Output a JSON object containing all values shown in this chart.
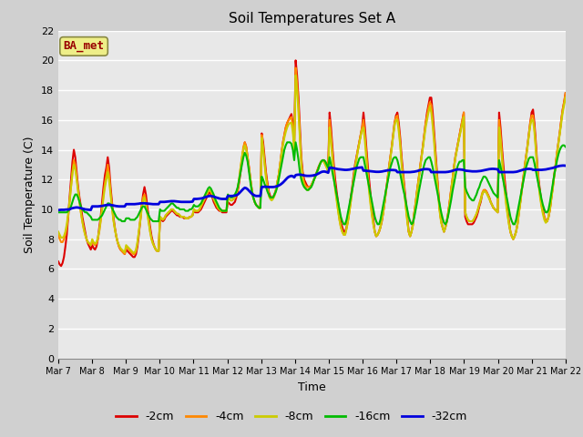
{
  "title": "Soil Temperatures Set A",
  "xlabel": "Time",
  "ylabel": "Soil Temperature (C)",
  "ylim": [
    0,
    22
  ],
  "yticks": [
    0,
    2,
    4,
    6,
    8,
    10,
    12,
    14,
    16,
    18,
    20,
    22
  ],
  "xtick_labels": [
    "Mar 7",
    "Mar 8",
    "Mar 9",
    "Mar 10",
    "Mar 11",
    "Mar 12",
    "Mar 13",
    "Mar 14",
    "Mar 15",
    "Mar 16",
    "Mar 17",
    "Mar 18",
    "Mar 19",
    "Mar 20",
    "Mar 21",
    "Mar 22"
  ],
  "fig_bg_color": "#d0d0d0",
  "plot_bg_color": "#e8e8e8",
  "label_box_color": "#eeee88",
  "label_box_text": "BA_met",
  "legend_labels": [
    "-2cm",
    "-4cm",
    "-8cm",
    "-16cm",
    "-32cm"
  ],
  "line_colors": [
    "#dd0000",
    "#ff8800",
    "#cccc00",
    "#00bb00",
    "#0000dd"
  ],
  "line_widths": [
    1.5,
    1.5,
    1.5,
    1.5,
    2.0
  ],
  "n_days": 15,
  "pts_per_day": 24,
  "series_2cm": [
    6.5,
    6.3,
    6.2,
    6.4,
    6.8,
    7.5,
    8.3,
    9.5,
    10.8,
    12.0,
    13.2,
    14.0,
    13.5,
    12.5,
    11.5,
    10.8,
    10.2,
    9.5,
    9.0,
    8.5,
    8.0,
    7.7,
    7.5,
    7.3,
    7.6,
    7.4,
    7.3,
    7.5,
    8.0,
    8.8,
    9.5,
    10.5,
    11.5,
    12.3,
    12.8,
    13.5,
    12.8,
    11.5,
    10.5,
    9.5,
    8.8,
    8.2,
    7.8,
    7.5,
    7.3,
    7.2,
    7.1,
    7.0,
    7.3,
    7.2,
    7.1,
    7.0,
    6.9,
    6.8,
    6.8,
    7.0,
    7.5,
    8.3,
    9.2,
    10.2,
    11.0,
    11.5,
    11.0,
    10.2,
    9.5,
    8.8,
    8.2,
    7.8,
    7.5,
    7.3,
    7.2,
    7.2,
    9.4,
    9.3,
    9.2,
    9.3,
    9.5,
    9.6,
    9.7,
    9.8,
    9.9,
    9.9,
    9.8,
    9.7,
    9.6,
    9.6,
    9.5,
    9.5,
    9.5,
    9.4,
    9.4,
    9.4,
    9.4,
    9.5,
    9.5,
    9.6,
    9.9,
    9.8,
    9.8,
    9.8,
    9.9,
    10.0,
    10.2,
    10.4,
    10.6,
    10.8,
    11.0,
    11.2,
    11.0,
    10.8,
    10.5,
    10.3,
    10.1,
    10.0,
    9.9,
    9.9,
    9.8,
    9.8,
    9.8,
    9.8,
    10.5,
    10.4,
    10.3,
    10.3,
    10.4,
    10.5,
    10.8,
    11.2,
    11.8,
    12.5,
    13.3,
    14.0,
    14.5,
    14.2,
    13.5,
    12.8,
    12.0,
    11.3,
    10.8,
    10.5,
    10.3,
    10.2,
    10.1,
    10.1,
    15.1,
    14.5,
    13.5,
    12.5,
    11.8,
    11.2,
    10.9,
    10.8,
    10.8,
    11.0,
    11.3,
    11.8,
    12.3,
    13.0,
    13.8,
    14.5,
    15.0,
    15.5,
    15.8,
    16.0,
    16.2,
    16.4,
    15.8,
    14.5,
    20.0,
    19.0,
    17.5,
    15.5,
    13.5,
    12.5,
    12.0,
    11.8,
    11.6,
    11.5,
    11.5,
    11.6,
    11.8,
    12.0,
    12.3,
    12.5,
    12.8,
    13.0,
    13.2,
    13.3,
    13.3,
    13.2,
    13.0,
    12.8,
    16.5,
    15.5,
    14.2,
    13.0,
    12.0,
    11.2,
    10.5,
    9.8,
    9.1,
    8.8,
    8.5,
    8.5,
    8.8,
    9.3,
    10.0,
    10.8,
    11.5,
    12.3,
    13.0,
    13.5,
    14.0,
    14.5,
    15.0,
    15.5,
    16.5,
    15.5,
    14.2,
    13.0,
    12.0,
    11.0,
    10.0,
    9.3,
    8.5,
    8.2,
    8.3,
    8.5,
    8.8,
    9.2,
    9.8,
    10.5,
    11.3,
    12.0,
    12.8,
    13.5,
    14.2,
    15.0,
    15.8,
    16.3,
    16.5,
    15.8,
    14.8,
    13.5,
    12.5,
    11.5,
    10.5,
    9.5,
    8.5,
    8.2,
    8.5,
    9.0,
    9.8,
    10.5,
    11.3,
    12.0,
    12.8,
    13.5,
    14.2,
    15.0,
    15.8,
    16.5,
    17.0,
    17.5,
    17.5,
    16.5,
    15.2,
    13.8,
    12.5,
    11.2,
    10.0,
    9.2,
    8.8,
    8.5,
    8.8,
    9.2,
    9.8,
    10.5,
    11.3,
    12.0,
    12.8,
    13.5,
    14.0,
    14.5,
    15.0,
    15.5,
    16.0,
    16.5,
    9.5,
    9.2,
    9.0,
    9.0,
    9.0,
    9.0,
    9.1,
    9.3,
    9.5,
    9.8,
    10.2,
    10.5,
    11.0,
    11.2,
    11.3,
    11.2,
    11.0,
    10.8,
    10.5,
    10.3,
    10.1,
    10.0,
    9.9,
    9.8,
    16.5,
    15.5,
    14.2,
    13.0,
    12.0,
    11.0,
    10.0,
    9.2,
    8.5,
    8.2,
    8.0,
    8.2,
    8.5,
    9.0,
    9.8,
    10.5,
    11.3,
    12.0,
    12.8,
    13.5,
    14.2,
    15.0,
    15.8,
    16.5,
    16.7,
    15.8,
    14.5,
    13.0,
    12.0,
    11.2,
    10.5,
    10.0,
    9.5,
    9.2,
    9.2,
    9.5,
    10.0,
    10.8,
    11.5,
    12.3,
    13.0,
    13.8,
    14.5,
    15.2,
    16.0,
    16.7,
    17.2,
    17.8
  ],
  "series_4cm": [
    8.3,
    8.0,
    7.8,
    7.8,
    8.0,
    8.3,
    8.8,
    9.5,
    10.5,
    11.5,
    12.5,
    13.3,
    13.0,
    12.2,
    11.3,
    10.5,
    9.8,
    9.2,
    8.7,
    8.3,
    8.0,
    7.8,
    7.7,
    7.6,
    7.8,
    7.7,
    7.6,
    7.7,
    8.0,
    8.5,
    9.2,
    10.0,
    11.0,
    11.8,
    12.3,
    13.0,
    12.3,
    11.2,
    10.2,
    9.3,
    8.7,
    8.2,
    7.8,
    7.5,
    7.3,
    7.2,
    7.1,
    7.0,
    7.5,
    7.4,
    7.3,
    7.2,
    7.1,
    7.0,
    7.0,
    7.2,
    7.7,
    8.5,
    9.3,
    10.2,
    10.8,
    11.0,
    10.5,
    9.8,
    9.2,
    8.5,
    8.0,
    7.7,
    7.5,
    7.3,
    7.2,
    7.2,
    9.5,
    9.4,
    9.3,
    9.4,
    9.6,
    9.7,
    9.8,
    9.9,
    10.0,
    10.0,
    9.9,
    9.8,
    9.7,
    9.7,
    9.6,
    9.5,
    9.5,
    9.5,
    9.4,
    9.4,
    9.4,
    9.5,
    9.5,
    9.6,
    10.0,
    9.9,
    9.9,
    9.9,
    10.0,
    10.2,
    10.4,
    10.6,
    10.8,
    11.0,
    11.2,
    11.3,
    11.2,
    11.0,
    10.7,
    10.5,
    10.3,
    10.1,
    10.0,
    9.9,
    9.9,
    9.9,
    9.9,
    9.9,
    10.8,
    10.7,
    10.6,
    10.6,
    10.7,
    10.8,
    11.0,
    11.4,
    12.0,
    12.8,
    13.5,
    14.2,
    14.5,
    14.2,
    13.5,
    12.8,
    12.0,
    11.3,
    10.8,
    10.5,
    10.3,
    10.2,
    10.1,
    10.1,
    15.0,
    14.2,
    13.2,
    12.3,
    11.6,
    11.0,
    10.8,
    10.7,
    10.8,
    11.0,
    11.3,
    11.8,
    12.3,
    13.0,
    13.8,
    14.5,
    15.0,
    15.5,
    15.8,
    16.0,
    16.1,
    16.2,
    15.5,
    14.2,
    19.5,
    18.5,
    17.0,
    15.0,
    13.2,
    12.2,
    11.8,
    11.6,
    11.5,
    11.5,
    11.5,
    11.6,
    11.8,
    12.0,
    12.3,
    12.5,
    12.8,
    13.0,
    13.2,
    13.3,
    13.2,
    13.0,
    12.8,
    12.5,
    16.0,
    15.0,
    13.8,
    12.5,
    11.5,
    10.8,
    10.0,
    9.3,
    8.8,
    8.5,
    8.3,
    8.3,
    8.7,
    9.2,
    9.8,
    10.5,
    11.3,
    12.0,
    12.8,
    13.4,
    14.0,
    14.5,
    15.0,
    15.5,
    16.0,
    15.0,
    13.8,
    12.5,
    11.5,
    10.5,
    9.7,
    9.0,
    8.5,
    8.2,
    8.3,
    8.5,
    8.8,
    9.3,
    9.8,
    10.5,
    11.3,
    12.0,
    12.8,
    13.5,
    14.2,
    15.0,
    15.8,
    16.2,
    16.3,
    15.5,
    14.5,
    13.2,
    12.2,
    11.2,
    10.2,
    9.3,
    8.5,
    8.2,
    8.5,
    9.0,
    9.8,
    10.5,
    11.3,
    12.0,
    12.8,
    13.5,
    14.2,
    15.0,
    15.8,
    16.3,
    16.8,
    17.2,
    17.0,
    16.0,
    14.8,
    13.5,
    12.2,
    11.0,
    9.9,
    9.2,
    8.8,
    8.5,
    8.8,
    9.2,
    9.8,
    10.5,
    11.3,
    12.0,
    12.8,
    13.5,
    14.0,
    14.5,
    15.0,
    15.5,
    16.0,
    16.5,
    9.8,
    9.5,
    9.3,
    9.2,
    9.2,
    9.2,
    9.3,
    9.5,
    9.7,
    10.0,
    10.4,
    10.7,
    11.1,
    11.3,
    11.3,
    11.2,
    11.0,
    10.8,
    10.5,
    10.3,
    10.1,
    10.0,
    9.9,
    9.8,
    16.0,
    15.0,
    13.8,
    12.5,
    11.5,
    10.5,
    9.7,
    9.0,
    8.5,
    8.2,
    8.0,
    8.2,
    8.5,
    9.0,
    9.8,
    10.5,
    11.3,
    12.0,
    12.8,
    13.5,
    14.2,
    15.0,
    15.8,
    16.3,
    16.3,
    15.5,
    14.2,
    12.8,
    11.8,
    11.0,
    10.3,
    9.8,
    9.5,
    9.2,
    9.2,
    9.5,
    10.0,
    10.8,
    11.5,
    12.3,
    13.0,
    13.8,
    14.5,
    15.2,
    16.0,
    16.7,
    17.2,
    17.8
  ],
  "series_8cm": [
    8.5,
    8.3,
    8.1,
    8.1,
    8.2,
    8.5,
    9.0,
    9.7,
    10.6,
    11.5,
    12.4,
    13.0,
    12.7,
    12.0,
    11.2,
    10.5,
    9.8,
    9.2,
    8.7,
    8.3,
    8.0,
    7.8,
    7.7,
    7.6,
    8.0,
    7.8,
    7.7,
    7.8,
    8.1,
    8.6,
    9.3,
    10.0,
    10.8,
    11.5,
    12.0,
    12.5,
    11.9,
    11.0,
    10.1,
    9.3,
    8.7,
    8.2,
    7.8,
    7.6,
    7.4,
    7.3,
    7.2,
    7.1,
    7.6,
    7.5,
    7.4,
    7.3,
    7.2,
    7.1,
    7.1,
    7.3,
    7.8,
    8.5,
    9.2,
    10.0,
    10.6,
    10.8,
    10.3,
    9.7,
    9.1,
    8.5,
    8.0,
    7.7,
    7.5,
    7.3,
    7.2,
    7.2,
    9.5,
    9.4,
    9.3,
    9.4,
    9.6,
    9.7,
    9.8,
    9.9,
    10.0,
    10.0,
    9.9,
    9.8,
    9.7,
    9.7,
    9.6,
    9.5,
    9.5,
    9.5,
    9.4,
    9.4,
    9.4,
    9.5,
    9.5,
    9.6,
    10.0,
    9.9,
    9.9,
    9.9,
    10.0,
    10.2,
    10.4,
    10.6,
    10.8,
    11.0,
    11.2,
    11.3,
    11.2,
    11.0,
    10.7,
    10.5,
    10.3,
    10.1,
    10.0,
    9.9,
    9.9,
    9.9,
    9.9,
    9.9,
    10.8,
    10.7,
    10.6,
    10.6,
    10.7,
    10.8,
    11.0,
    11.4,
    12.0,
    12.8,
    13.5,
    14.0,
    14.3,
    14.0,
    13.4,
    12.7,
    12.0,
    11.3,
    10.8,
    10.5,
    10.3,
    10.2,
    10.1,
    10.1,
    14.8,
    14.0,
    13.0,
    12.1,
    11.5,
    10.9,
    10.7,
    10.6,
    10.7,
    10.9,
    11.2,
    11.8,
    12.3,
    13.0,
    13.7,
    14.3,
    14.8,
    15.2,
    15.5,
    15.7,
    15.8,
    15.8,
    15.2,
    14.0,
    19.0,
    18.0,
    16.5,
    14.7,
    13.0,
    12.0,
    11.6,
    11.4,
    11.3,
    11.3,
    11.4,
    11.5,
    11.8,
    12.0,
    12.2,
    12.5,
    12.7,
    13.0,
    13.2,
    13.3,
    13.2,
    13.0,
    12.8,
    12.5,
    15.5,
    14.6,
    13.4,
    12.2,
    11.3,
    10.6,
    9.9,
    9.3,
    8.8,
    8.5,
    8.3,
    8.3,
    8.7,
    9.2,
    9.8,
    10.5,
    11.3,
    12.0,
    12.8,
    13.3,
    13.9,
    14.4,
    14.9,
    15.3,
    15.5,
    14.6,
    13.4,
    12.2,
    11.2,
    10.3,
    9.6,
    9.0,
    8.5,
    8.2,
    8.3,
    8.5,
    8.8,
    9.3,
    9.8,
    10.5,
    11.2,
    11.9,
    12.7,
    13.4,
    14.1,
    14.9,
    15.6,
    16.0,
    16.0,
    15.2,
    14.3,
    13.0,
    12.0,
    11.1,
    10.1,
    9.2,
    8.5,
    8.2,
    8.5,
    8.9,
    9.7,
    10.4,
    11.2,
    11.9,
    12.7,
    13.4,
    14.1,
    14.8,
    15.5,
    16.0,
    16.5,
    16.9,
    16.5,
    15.6,
    14.5,
    13.2,
    12.0,
    10.8,
    9.8,
    9.1,
    8.8,
    8.5,
    8.8,
    9.2,
    9.7,
    10.4,
    11.2,
    11.9,
    12.7,
    13.4,
    13.9,
    14.4,
    14.9,
    15.3,
    15.8,
    16.2,
    9.8,
    9.5,
    9.3,
    9.2,
    9.2,
    9.2,
    9.3,
    9.5,
    9.7,
    10.0,
    10.3,
    10.6,
    11.0,
    11.2,
    11.2,
    11.1,
    10.9,
    10.7,
    10.5,
    10.3,
    10.1,
    10.0,
    9.9,
    9.8,
    15.5,
    14.6,
    13.4,
    12.2,
    11.2,
    10.3,
    9.6,
    9.0,
    8.5,
    8.2,
    8.0,
    8.2,
    8.5,
    9.0,
    9.7,
    10.4,
    11.2,
    11.9,
    12.7,
    13.4,
    14.1,
    14.9,
    15.6,
    16.0,
    16.0,
    15.2,
    14.0,
    12.6,
    11.6,
    10.8,
    10.2,
    9.7,
    9.3,
    9.1,
    9.2,
    9.5,
    10.0,
    10.7,
    11.4,
    12.2,
    12.9,
    13.7,
    14.4,
    15.1,
    15.8,
    16.5,
    17.0,
    17.5
  ],
  "series_16cm": [
    9.8,
    9.8,
    9.8,
    9.8,
    9.8,
    9.8,
    9.8,
    9.9,
    10.0,
    10.2,
    10.5,
    10.8,
    11.0,
    11.0,
    10.8,
    10.5,
    10.2,
    10.0,
    9.9,
    9.8,
    9.8,
    9.7,
    9.6,
    9.5,
    9.3,
    9.3,
    9.3,
    9.3,
    9.3,
    9.4,
    9.5,
    9.6,
    9.8,
    10.0,
    10.2,
    10.4,
    10.4,
    10.3,
    10.1,
    9.9,
    9.7,
    9.5,
    9.4,
    9.3,
    9.3,
    9.2,
    9.2,
    9.2,
    9.4,
    9.4,
    9.4,
    9.3,
    9.3,
    9.3,
    9.3,
    9.4,
    9.5,
    9.7,
    9.9,
    10.1,
    10.2,
    10.2,
    10.0,
    9.8,
    9.6,
    9.4,
    9.3,
    9.2,
    9.2,
    9.2,
    9.2,
    9.2,
    10.0,
    9.9,
    9.9,
    9.9,
    10.0,
    10.1,
    10.2,
    10.3,
    10.4,
    10.4,
    10.3,
    10.2,
    10.1,
    10.1,
    10.0,
    10.0,
    10.0,
    10.0,
    9.9,
    9.9,
    9.9,
    10.0,
    10.0,
    10.1,
    10.3,
    10.2,
    10.2,
    10.2,
    10.3,
    10.4,
    10.6,
    10.8,
    11.0,
    11.2,
    11.4,
    11.5,
    11.4,
    11.2,
    11.0,
    10.7,
    10.5,
    10.3,
    10.1,
    10.0,
    9.9,
    9.9,
    9.9,
    9.9,
    11.0,
    10.9,
    10.8,
    10.8,
    10.9,
    11.0,
    11.2,
    11.5,
    12.0,
    12.5,
    13.0,
    13.5,
    13.8,
    13.6,
    13.2,
    12.5,
    11.8,
    11.2,
    10.8,
    10.5,
    10.3,
    10.2,
    10.1,
    10.1,
    12.2,
    12.0,
    11.7,
    11.5,
    11.2,
    11.0,
    10.8,
    10.8,
    10.8,
    11.0,
    11.2,
    11.5,
    12.0,
    12.5,
    13.0,
    13.5,
    14.0,
    14.3,
    14.5,
    14.5,
    14.5,
    14.4,
    14.0,
    13.3,
    14.5,
    14.0,
    13.3,
    12.5,
    12.0,
    11.7,
    11.5,
    11.4,
    11.3,
    11.3,
    11.4,
    11.5,
    11.7,
    12.0,
    12.2,
    12.5,
    12.7,
    13.0,
    13.2,
    13.3,
    13.3,
    13.2,
    13.0,
    12.8,
    13.5,
    13.0,
    12.5,
    12.0,
    11.5,
    11.0,
    10.5,
    10.0,
    9.5,
    9.2,
    9.0,
    9.0,
    9.3,
    9.8,
    10.3,
    10.8,
    11.3,
    11.8,
    12.3,
    12.8,
    13.1,
    13.4,
    13.5,
    13.5,
    13.5,
    13.0,
    12.5,
    12.0,
    11.5,
    11.0,
    10.5,
    10.0,
    9.5,
    9.2,
    9.0,
    9.0,
    9.3,
    9.8,
    10.3,
    10.8,
    11.3,
    11.8,
    12.3,
    12.8,
    13.1,
    13.4,
    13.5,
    13.5,
    13.3,
    12.9,
    12.4,
    11.9,
    11.4,
    11.0,
    10.5,
    10.0,
    9.5,
    9.2,
    9.0,
    9.1,
    9.5,
    10.0,
    10.5,
    11.1,
    11.6,
    12.1,
    12.6,
    13.0,
    13.3,
    13.4,
    13.5,
    13.5,
    13.2,
    12.8,
    12.3,
    11.8,
    11.3,
    10.8,
    10.3,
    9.8,
    9.4,
    9.1,
    9.0,
    9.2,
    9.6,
    10.1,
    10.6,
    11.2,
    11.7,
    12.2,
    12.7,
    13.0,
    13.2,
    13.2,
    13.3,
    13.3,
    11.5,
    11.2,
    11.0,
    10.8,
    10.7,
    10.6,
    10.6,
    10.8,
    11.0,
    11.3,
    11.5,
    11.8,
    12.0,
    12.2,
    12.2,
    12.1,
    11.9,
    11.7,
    11.5,
    11.3,
    11.1,
    11.0,
    10.9,
    10.8,
    13.3,
    12.9,
    12.4,
    11.9,
    11.4,
    11.0,
    10.5,
    10.0,
    9.5,
    9.2,
    9.0,
    9.0,
    9.3,
    9.8,
    10.3,
    10.8,
    11.3,
    11.8,
    12.3,
    12.8,
    13.1,
    13.4,
    13.5,
    13.5,
    13.5,
    13.1,
    12.6,
    12.1,
    11.6,
    11.2,
    10.7,
    10.3,
    10.0,
    9.8,
    9.8,
    10.0,
    10.5,
    11.1,
    11.7,
    12.3,
    12.8,
    13.3,
    13.7,
    14.0,
    14.2,
    14.3,
    14.3,
    14.2
  ],
  "series_32cm": [
    9.95,
    9.96,
    9.97,
    9.97,
    9.97,
    9.98,
    9.99,
    10.0,
    10.0,
    10.05,
    10.08,
    10.1,
    10.12,
    10.13,
    10.12,
    10.1,
    10.08,
    10.05,
    10.03,
    10.0,
    9.99,
    9.98,
    9.97,
    9.96,
    10.2,
    10.2,
    10.2,
    10.2,
    10.2,
    10.21,
    10.22,
    10.23,
    10.25,
    10.27,
    10.29,
    10.3,
    10.3,
    10.3,
    10.28,
    10.26,
    10.24,
    10.22,
    10.21,
    10.2,
    10.2,
    10.2,
    10.2,
    10.2,
    10.35,
    10.35,
    10.35,
    10.35,
    10.35,
    10.35,
    10.35,
    10.36,
    10.37,
    10.38,
    10.4,
    10.41,
    10.41,
    10.41,
    10.4,
    10.39,
    10.38,
    10.37,
    10.36,
    10.35,
    10.35,
    10.35,
    10.35,
    10.35,
    10.5,
    10.5,
    10.5,
    10.5,
    10.51,
    10.52,
    10.53,
    10.54,
    10.55,
    10.55,
    10.55,
    10.54,
    10.53,
    10.52,
    10.51,
    10.5,
    10.5,
    10.5,
    10.5,
    10.5,
    10.5,
    10.5,
    10.51,
    10.52,
    10.7,
    10.7,
    10.7,
    10.71,
    10.72,
    10.73,
    10.75,
    10.78,
    10.82,
    10.85,
    10.88,
    10.9,
    10.9,
    10.88,
    10.85,
    10.82,
    10.79,
    10.76,
    10.73,
    10.71,
    10.7,
    10.7,
    10.7,
    10.7,
    10.9,
    10.9,
    10.9,
    10.9,
    10.91,
    10.92,
    10.95,
    11.0,
    11.08,
    11.18,
    11.28,
    11.38,
    11.45,
    11.42,
    11.35,
    11.25,
    11.15,
    11.05,
    10.98,
    10.93,
    10.9,
    10.9,
    10.9,
    10.9,
    11.5,
    11.51,
    11.52,
    11.52,
    11.51,
    11.5,
    11.5,
    11.5,
    11.5,
    11.51,
    11.53,
    11.56,
    11.6,
    11.65,
    11.72,
    11.8,
    11.9,
    12.0,
    12.1,
    12.18,
    12.22,
    12.25,
    12.22,
    12.15,
    12.3,
    12.32,
    12.33,
    12.33,
    12.32,
    12.3,
    12.28,
    12.26,
    12.25,
    12.25,
    12.25,
    12.26,
    12.27,
    12.29,
    12.31,
    12.35,
    12.4,
    12.45,
    12.5,
    12.53,
    12.54,
    12.53,
    12.5,
    12.46,
    12.8,
    12.8,
    12.78,
    12.76,
    12.74,
    12.72,
    12.7,
    12.69,
    12.68,
    12.67,
    12.66,
    12.65,
    12.65,
    12.66,
    12.67,
    12.69,
    12.71,
    12.73,
    12.75,
    12.77,
    12.79,
    12.8,
    12.81,
    12.82,
    12.6,
    12.6,
    12.59,
    12.58,
    12.57,
    12.56,
    12.55,
    12.54,
    12.53,
    12.52,
    12.52,
    12.52,
    12.53,
    12.54,
    12.56,
    12.58,
    12.6,
    12.62,
    12.63,
    12.64,
    12.64,
    12.64,
    12.63,
    12.62,
    12.5,
    12.5,
    12.5,
    12.5,
    12.5,
    12.5,
    12.5,
    12.5,
    12.5,
    12.5,
    12.51,
    12.52,
    12.53,
    12.55,
    12.57,
    12.6,
    12.63,
    12.66,
    12.68,
    12.7,
    12.7,
    12.7,
    12.69,
    12.67,
    12.5,
    12.5,
    12.5,
    12.5,
    12.5,
    12.5,
    12.5,
    12.5,
    12.5,
    12.5,
    12.5,
    12.51,
    12.52,
    12.54,
    12.56,
    12.59,
    12.62,
    12.65,
    12.67,
    12.68,
    12.68,
    12.67,
    12.66,
    12.64,
    12.6,
    12.59,
    12.58,
    12.57,
    12.56,
    12.55,
    12.55,
    12.55,
    12.55,
    12.56,
    12.57,
    12.58,
    12.6,
    12.62,
    12.64,
    12.66,
    12.68,
    12.7,
    12.71,
    12.72,
    12.72,
    12.71,
    12.7,
    12.69,
    12.5,
    12.5,
    12.5,
    12.5,
    12.5,
    12.5,
    12.5,
    12.5,
    12.5,
    12.5,
    12.5,
    12.51,
    12.52,
    12.54,
    12.57,
    12.6,
    12.63,
    12.66,
    12.68,
    12.7,
    12.71,
    12.72,
    12.71,
    12.7,
    12.65,
    12.65,
    12.65,
    12.65,
    12.65,
    12.65,
    12.65,
    12.66,
    12.67,
    12.68,
    12.7,
    12.72,
    12.74,
    12.76,
    12.78,
    12.81,
    12.84,
    12.87,
    12.9,
    12.92,
    12.93,
    12.94,
    12.94,
    12.93
  ]
}
